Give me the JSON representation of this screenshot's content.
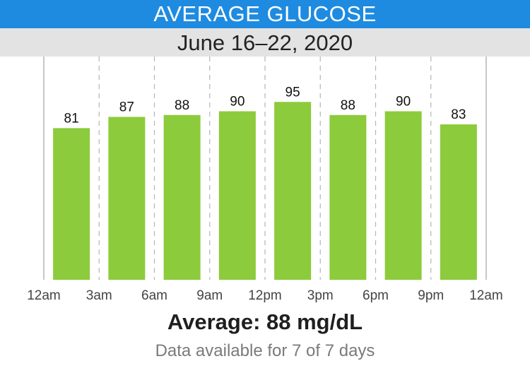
{
  "header": {
    "title": "AVERAGE GLUCOSE",
    "date_range": "June 16–22, 2020"
  },
  "summary": {
    "average": "Average: 88 mg/dL",
    "availability": "Data available for 7 of 7 days"
  },
  "colors": {
    "title_bar": "#1e8be0",
    "subtitle_bar": "#e3e3e3",
    "bar": "#8ccb3b",
    "grid": "#b5b5b5"
  },
  "chart_data": {
    "type": "bar",
    "categories": [
      "12am–3am",
      "3am–6am",
      "6am–9am",
      "9am–12pm",
      "12pm–3pm",
      "3pm–6pm",
      "6pm–9pm",
      "9pm–12am"
    ],
    "values": [
      81,
      87,
      88,
      90,
      95,
      88,
      90,
      83
    ],
    "x_tick_labels": [
      "12am",
      "3am",
      "6am",
      "9am",
      "12pm",
      "3pm",
      "6pm",
      "9pm",
      "12am"
    ],
    "ylim": [
      0,
      100
    ],
    "grid": true
  }
}
